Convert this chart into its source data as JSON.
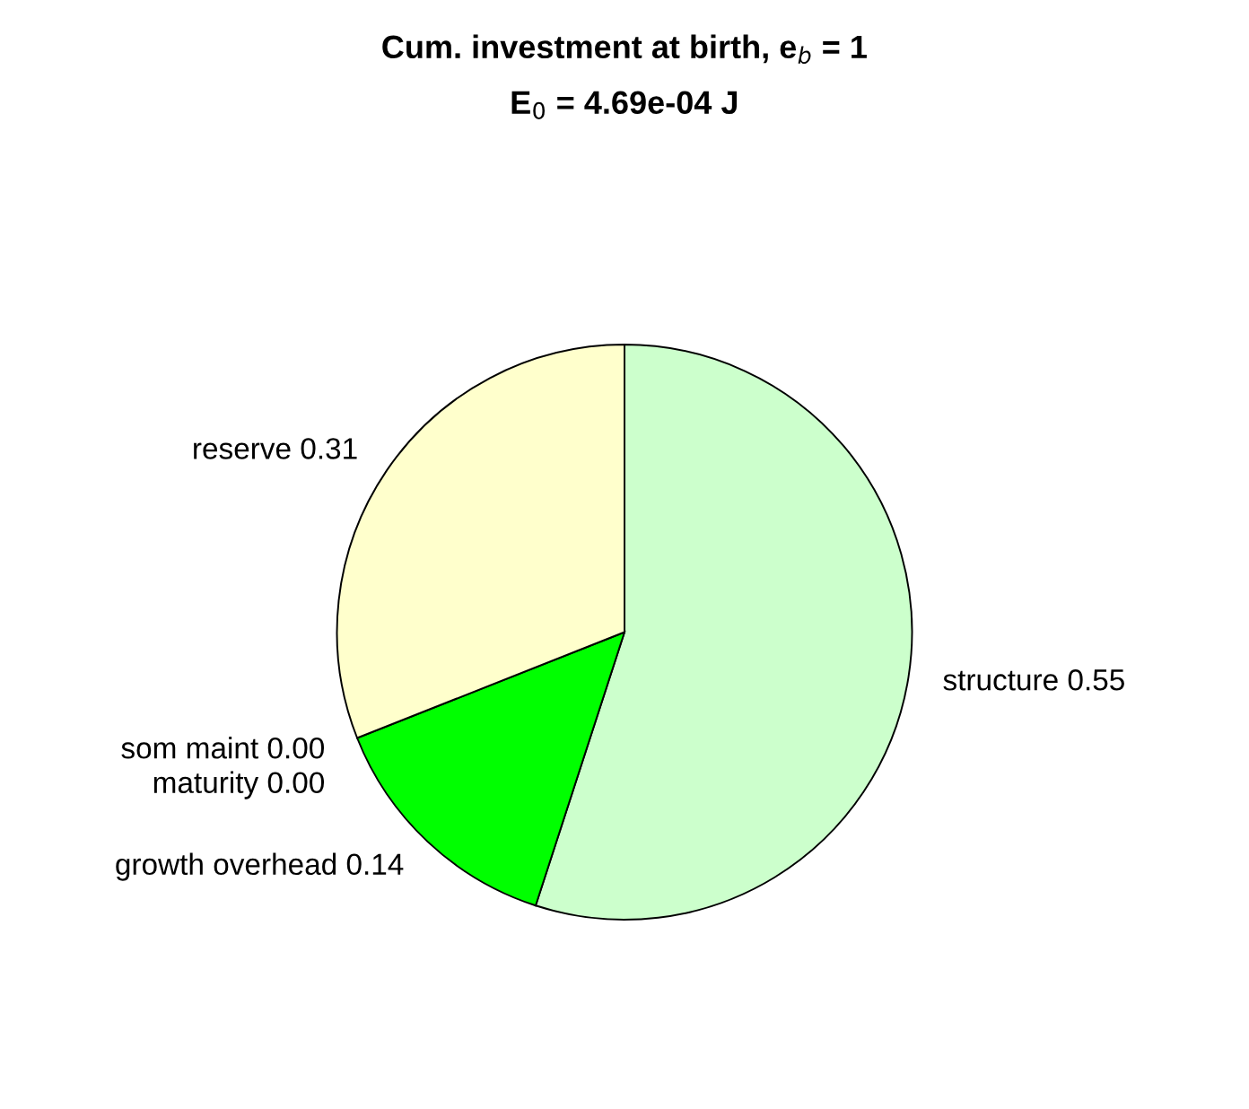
{
  "chart_data": {
    "type": "pie",
    "title": "Cum. investment at birth, e$_{b}$ = 1",
    "subtitle": "E$_{0}$ = 4.69e-04 J",
    "categories": [
      "structure",
      "growth overhead",
      "som maint",
      "maturity",
      "reserve"
    ],
    "values": [
      0.55,
      0.14,
      0,
      0,
      0.31
    ],
    "value_labels": [
      "0.55",
      "0.14",
      "0.00",
      "0.00",
      "0.31"
    ],
    "colors": [
      "#ccffcc",
      "#00ff00",
      "#000000",
      "#000080",
      "#ffffcc"
    ],
    "legend": false
  }
}
